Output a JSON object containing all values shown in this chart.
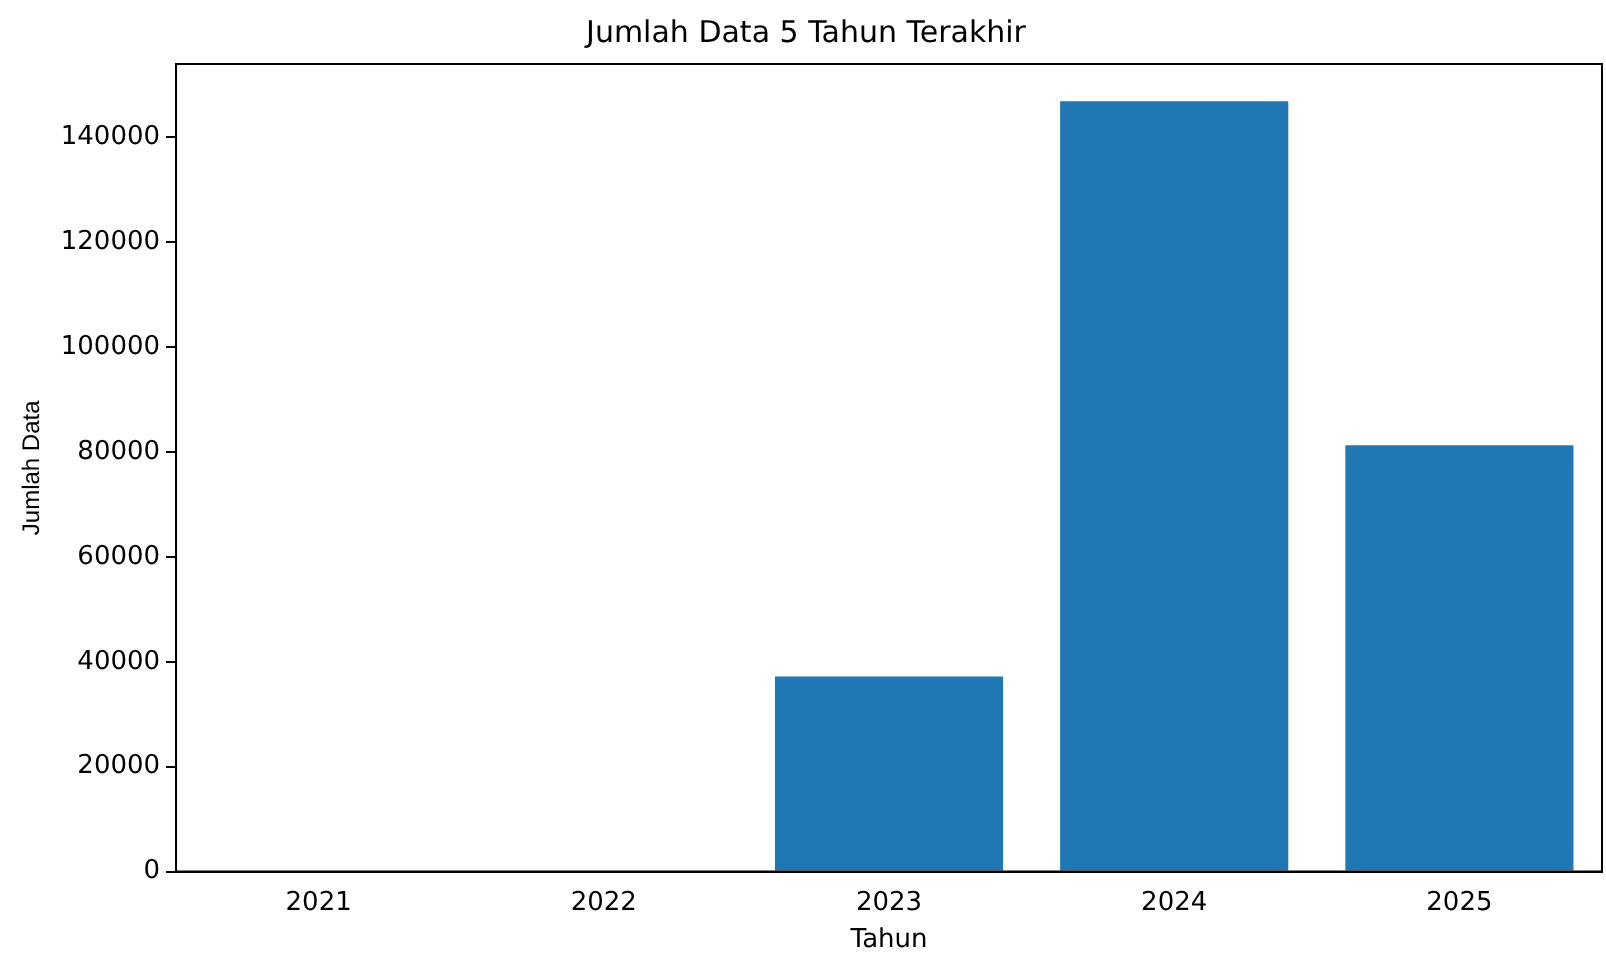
{
  "chart_data": {
    "type": "bar",
    "title": "Jumlah Data 5 Tahun Terakhir",
    "xlabel": "Tahun",
    "ylabel": "Jumlah Data",
    "categories": [
      "2021",
      "2022",
      "2023",
      "2024",
      "2025"
    ],
    "values": [
      0,
      0,
      37200,
      146900,
      81300
    ],
    "color": "#1f77b4",
    "ylim": [
      0,
      154000
    ],
    "yticks": [
      0,
      20000,
      40000,
      60000,
      80000,
      100000,
      120000,
      140000
    ],
    "grid": false,
    "legend": false
  }
}
